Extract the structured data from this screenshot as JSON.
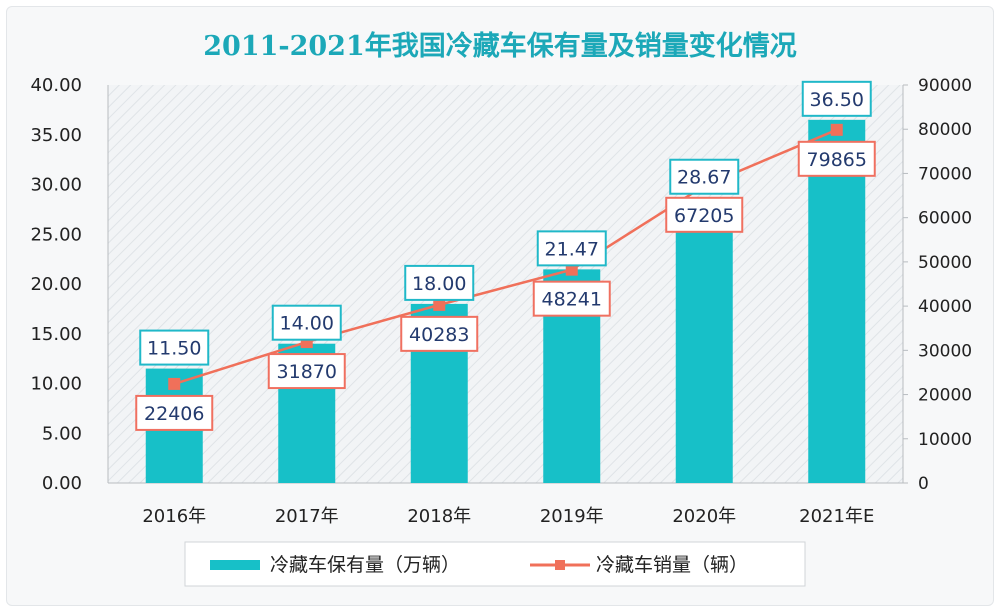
{
  "chart_data": {
    "type": "bar",
    "title": "2011-2021年我国冷藏车保有量及销量变化情况",
    "categories": [
      "2016年",
      "2017年",
      "2018年",
      "2019年",
      "2020年",
      "2021年E"
    ],
    "series": [
      {
        "name": "冷藏车保有量（万辆）",
        "kind": "bar",
        "axis": "left",
        "values": [
          11.5,
          14.0,
          18.0,
          21.47,
          28.67,
          36.5
        ],
        "labels": [
          "11.50",
          "14.00",
          "18.00",
          "21.47",
          "28.67",
          "36.50"
        ],
        "color": "#17c0c8"
      },
      {
        "name": "冷藏车销量（辆）",
        "kind": "line",
        "axis": "right",
        "values": [
          22406,
          31870,
          40283,
          48241,
          67205,
          79865
        ],
        "labels": [
          "22406",
          "31870",
          "40283",
          "48241",
          "67205",
          "79865"
        ],
        "color": "#f0705a"
      }
    ],
    "y_left": {
      "range": [
        0,
        40
      ],
      "ticks": [
        "0.00",
        "5.00",
        "10.00",
        "15.00",
        "20.00",
        "25.00",
        "30.00",
        "35.00",
        "40.00"
      ]
    },
    "y_right": {
      "range": [
        0,
        90000
      ],
      "ticks": [
        "0",
        "10000",
        "20000",
        "30000",
        "40000",
        "50000",
        "60000",
        "70000",
        "80000",
        "90000"
      ]
    },
    "legend_position": "bottom",
    "grid": false,
    "colors": {
      "title": "#1ca8b8",
      "bar_label_border": "#20b8c8",
      "line_label_border": "#f07060"
    }
  }
}
